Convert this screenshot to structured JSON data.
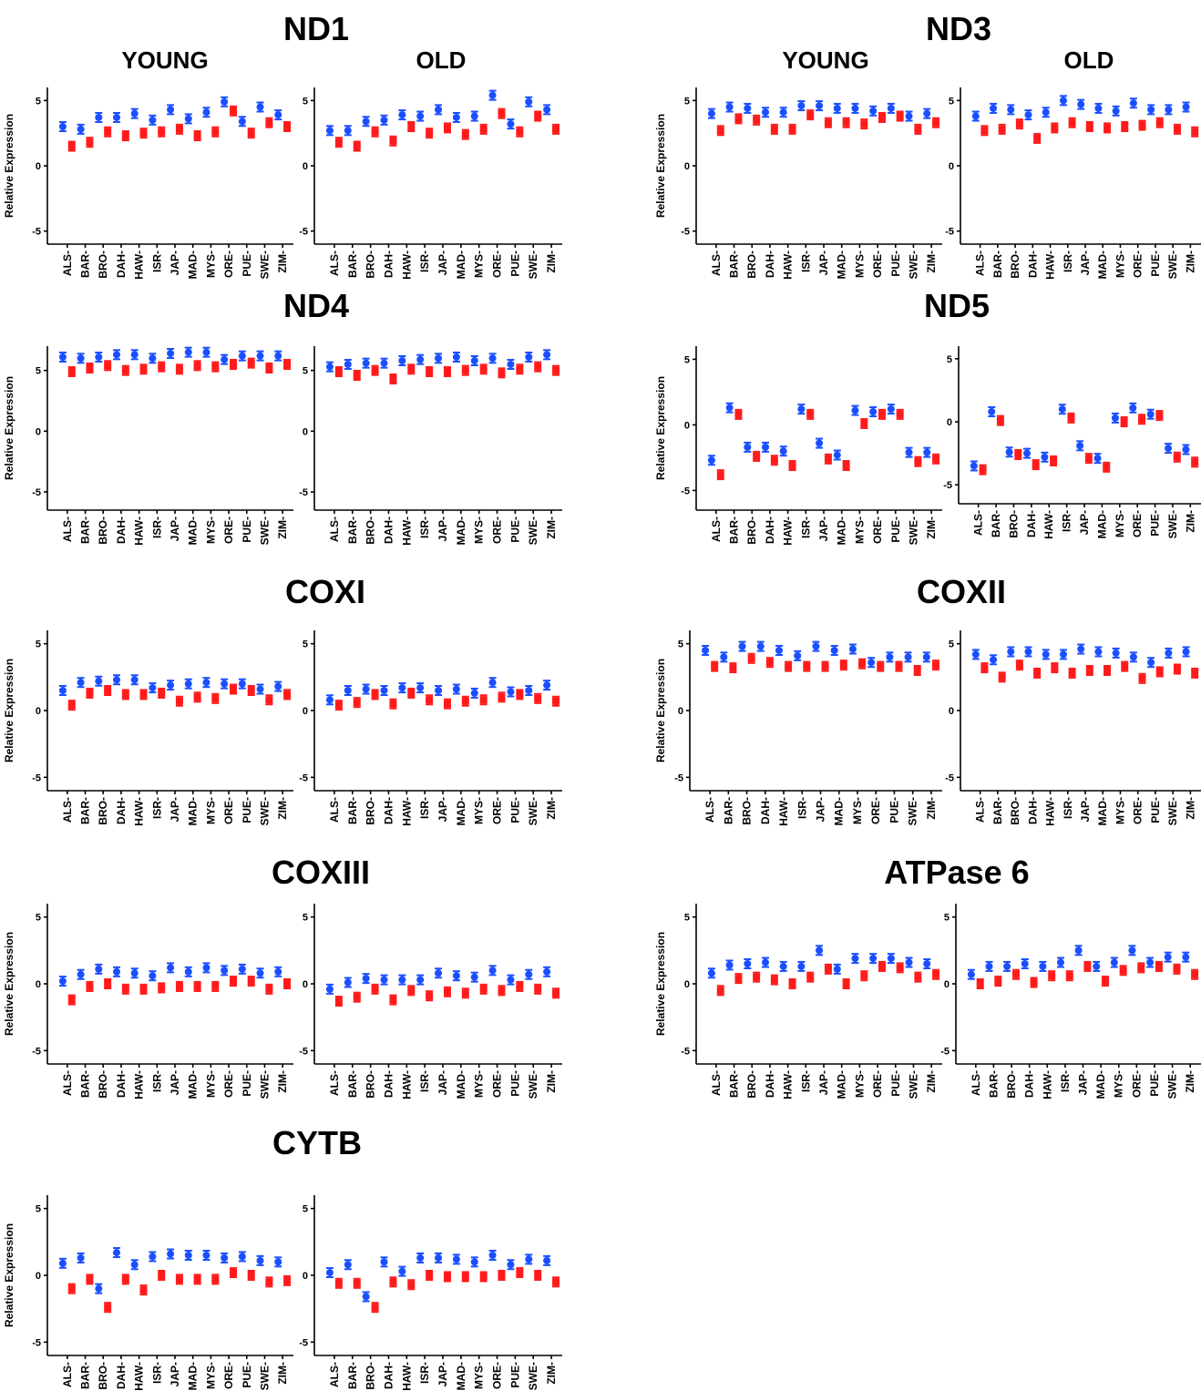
{
  "headers": {
    "young": "YOUNG",
    "old": "OLD"
  },
  "ylabel": "Relative Expression",
  "colors": {
    "young": "#1a4fff",
    "old": "#ff1a1a"
  },
  "chart_data": [
    {
      "type": "scatter",
      "gene": "ND1",
      "ylim": [
        -6,
        6
      ],
      "yticks": [
        -5,
        0,
        5
      ],
      "categories": [
        "ALS",
        "BAR",
        "BRO",
        "DAH",
        "HAW",
        "ISR",
        "JAP",
        "MAD",
        "MYS",
        "ORE",
        "PUE",
        "SWE",
        "ZIM"
      ],
      "young": {
        "blue": [
          3.0,
          2.8,
          3.7,
          3.7,
          4.0,
          3.5,
          4.3,
          3.6,
          4.1,
          4.9,
          3.4,
          4.5,
          3.9
        ],
        "red": [
          1.5,
          1.8,
          2.6,
          2.3,
          2.5,
          2.6,
          2.8,
          2.3,
          2.6,
          4.2,
          2.5,
          3.3,
          3.0
        ]
      },
      "old": {
        "blue": [
          2.7,
          2.7,
          3.4,
          3.5,
          3.9,
          3.8,
          4.3,
          3.7,
          3.8,
          5.4,
          3.2,
          4.9,
          4.3
        ],
        "red": [
          1.8,
          1.5,
          2.6,
          1.9,
          3.0,
          2.5,
          2.9,
          2.4,
          2.8,
          4.0,
          2.6,
          3.8,
          2.8
        ]
      }
    },
    {
      "type": "scatter",
      "gene": "ND3",
      "ylim": [
        -6,
        6
      ],
      "yticks": [
        -5,
        0,
        5
      ],
      "categories": [
        "ALS",
        "BAR",
        "BRO",
        "DAH",
        "HAW",
        "ISR",
        "JAP",
        "MAD",
        "MYS",
        "ORE",
        "PUE",
        "SWE",
        "ZIM"
      ],
      "young": {
        "blue": [
          4.0,
          4.5,
          4.4,
          4.1,
          4.1,
          4.6,
          4.6,
          4.4,
          4.4,
          4.2,
          4.4,
          3.8,
          4.0
        ],
        "red": [
          2.7,
          3.6,
          3.5,
          2.8,
          2.8,
          3.9,
          3.3,
          3.3,
          3.2,
          3.7,
          3.8,
          2.8,
          3.3
        ]
      },
      "old": {
        "blue": [
          3.8,
          4.4,
          4.3,
          3.9,
          4.1,
          5.0,
          4.7,
          4.4,
          4.2,
          4.8,
          4.3,
          4.3,
          4.5
        ],
        "red": [
          2.7,
          2.8,
          3.2,
          2.1,
          2.9,
          3.3,
          3.0,
          2.9,
          3.0,
          3.1,
          3.3,
          2.8,
          2.6
        ]
      }
    },
    {
      "type": "scatter",
      "gene": "ND4",
      "ylim": [
        -6.5,
        7
      ],
      "yticks": [
        -5,
        0,
        5
      ],
      "categories": [
        "ALS",
        "BAR",
        "BRO",
        "DAH",
        "HAW",
        "ISR",
        "JAP",
        "MAD",
        "MYS",
        "ORE",
        "PUE",
        "SWE",
        "ZIM"
      ],
      "young": {
        "blue": [
          6.1,
          6.0,
          6.1,
          6.3,
          6.3,
          6.0,
          6.4,
          6.5,
          6.5,
          5.9,
          6.2,
          6.2,
          6.2
        ],
        "red": [
          4.9,
          5.2,
          5.4,
          5.0,
          5.1,
          5.3,
          5.1,
          5.4,
          5.3,
          5.5,
          5.6,
          5.2,
          5.5
        ]
      },
      "old": {
        "blue": [
          5.3,
          5.5,
          5.6,
          5.6,
          5.8,
          5.9,
          6.0,
          6.1,
          5.8,
          6.0,
          5.5,
          6.1,
          6.3
        ],
        "red": [
          4.9,
          4.6,
          5.0,
          4.3,
          5.1,
          4.9,
          4.9,
          5.0,
          5.1,
          4.8,
          5.1,
          5.3,
          5.0
        ]
      }
    },
    {
      "type": "scatter",
      "gene": "ND5",
      "ylim": [
        -6.5,
        6
      ],
      "yticks": [
        -5,
        0,
        5
      ],
      "categories": [
        "ALS",
        "BAR",
        "BRO",
        "DAH",
        "HAW",
        "ISR",
        "JAP",
        "MAD",
        "MYS",
        "ORE",
        "PUE",
        "SWE",
        "ZIM"
      ],
      "young": {
        "blue": [
          -2.7,
          1.3,
          -1.7,
          -1.7,
          -2.0,
          1.2,
          -1.4,
          -2.3,
          1.1,
          1.0,
          1.2,
          -2.1,
          -2.1
        ],
        "red": [
          -3.8,
          0.8,
          -2.4,
          -2.7,
          -3.1,
          0.8,
          -2.6,
          -3.1,
          0.1,
          0.8,
          0.8,
          -2.8,
          -2.6
        ]
      },
      "old": {
        "blue": [
          -3.5,
          0.8,
          -2.4,
          -2.5,
          -2.8,
          1.0,
          -1.9,
          -2.9,
          0.3,
          1.1,
          0.6,
          -2.1,
          -2.2
        ],
        "red": [
          -3.8,
          0.1,
          -2.6,
          -3.4,
          -3.1,
          0.3,
          -2.9,
          -3.6,
          0.0,
          0.2,
          0.5,
          -2.8,
          -3.2
        ]
      }
    },
    {
      "type": "scatter",
      "gene": "COXI",
      "ylim": [
        -6,
        6
      ],
      "yticks": [
        -5,
        0,
        5
      ],
      "categories": [
        "ALS",
        "BAR",
        "BRO",
        "DAH",
        "HAW",
        "ISR",
        "JAP",
        "MAD",
        "MYS",
        "ORE",
        "PUE",
        "SWE",
        "ZIM"
      ],
      "young": {
        "blue": [
          1.5,
          2.1,
          2.2,
          2.3,
          2.3,
          1.7,
          1.9,
          2.0,
          2.1,
          2.0,
          2.0,
          1.6,
          1.8
        ],
        "red": [
          0.4,
          1.3,
          1.5,
          1.2,
          1.2,
          1.3,
          0.7,
          1.0,
          0.9,
          1.6,
          1.5,
          0.8,
          1.2
        ]
      },
      "old": {
        "blue": [
          0.8,
          1.5,
          1.6,
          1.5,
          1.7,
          1.7,
          1.5,
          1.6,
          1.3,
          2.1,
          1.4,
          1.5,
          1.9
        ],
        "red": [
          0.4,
          0.6,
          1.2,
          0.5,
          1.3,
          0.8,
          0.5,
          0.7,
          0.8,
          1.0,
          1.2,
          0.9,
          0.7
        ]
      }
    },
    {
      "type": "scatter",
      "gene": "COXII",
      "ylim": [
        -6,
        6
      ],
      "yticks": [
        -5,
        0,
        5
      ],
      "categories": [
        "ALS",
        "BAR",
        "BRO",
        "DAH",
        "HAW",
        "ISR",
        "JAP",
        "MAD",
        "MYS",
        "ORE",
        "PUE",
        "SWE",
        "ZIM"
      ],
      "young": {
        "blue": [
          4.5,
          4.0,
          4.8,
          4.8,
          4.5,
          4.1,
          4.8,
          4.5,
          4.6,
          3.6,
          4.0,
          4.0,
          4.0
        ],
        "red": [
          3.3,
          3.2,
          3.9,
          3.6,
          3.3,
          3.3,
          3.3,
          3.4,
          3.5,
          3.3,
          3.3,
          3.0,
          3.4
        ]
      },
      "old": {
        "blue": [
          4.2,
          3.8,
          4.4,
          4.4,
          4.2,
          4.2,
          4.6,
          4.4,
          4.3,
          4.0,
          3.6,
          4.3,
          4.4
        ],
        "red": [
          3.2,
          2.5,
          3.4,
          2.8,
          3.2,
          2.8,
          3.0,
          3.0,
          3.3,
          2.4,
          2.9,
          3.1,
          2.8
        ]
      }
    },
    {
      "type": "scatter",
      "gene": "COXIII",
      "ylim": [
        -6,
        6
      ],
      "yticks": [
        -5,
        0,
        5
      ],
      "categories": [
        "ALS",
        "BAR",
        "BRO",
        "DAH",
        "HAW",
        "ISR",
        "JAP",
        "MAD",
        "MYS",
        "ORE",
        "PUE",
        "SWE",
        "ZIM"
      ],
      "young": {
        "blue": [
          0.2,
          0.7,
          1.1,
          0.9,
          0.8,
          0.6,
          1.2,
          0.9,
          1.2,
          1.0,
          1.1,
          0.8,
          0.9
        ],
        "red": [
          -1.2,
          -0.2,
          0.0,
          -0.4,
          -0.4,
          -0.3,
          -0.2,
          -0.2,
          -0.2,
          0.2,
          0.2,
          -0.4,
          0.0
        ]
      },
      "old": {
        "blue": [
          -0.4,
          0.1,
          0.4,
          0.3,
          0.3,
          0.3,
          0.8,
          0.6,
          0.5,
          1.0,
          0.3,
          0.7,
          0.9
        ],
        "red": [
          -1.3,
          -1.0,
          -0.4,
          -1.2,
          -0.5,
          -0.9,
          -0.6,
          -0.7,
          -0.4,
          -0.5,
          -0.2,
          -0.4,
          -0.7
        ]
      }
    },
    {
      "type": "scatter",
      "gene": "ATPase 6",
      "ylim": [
        -6,
        6
      ],
      "yticks": [
        -5,
        0,
        5
      ],
      "categories": [
        "ALS",
        "BAR",
        "BRO",
        "DAH",
        "HAW",
        "ISR",
        "JAP",
        "MAD",
        "MYS",
        "ORE",
        "PUE",
        "SWE",
        "ZIM"
      ],
      "young": {
        "blue": [
          0.8,
          1.4,
          1.5,
          1.6,
          1.3,
          1.3,
          2.5,
          1.1,
          1.9,
          1.9,
          1.9,
          1.6,
          1.5
        ],
        "red": [
          -0.5,
          0.4,
          0.5,
          0.3,
          0.0,
          0.5,
          1.1,
          0.0,
          0.6,
          1.3,
          1.2,
          0.5,
          0.7
        ]
      },
      "old": {
        "blue": [
          0.7,
          1.3,
          1.3,
          1.5,
          1.3,
          1.6,
          2.5,
          1.3,
          1.6,
          2.5,
          1.6,
          2.0,
          2.0
        ],
        "red": [
          0.0,
          0.2,
          0.7,
          0.1,
          0.6,
          0.6,
          1.3,
          0.2,
          1.0,
          1.2,
          1.3,
          1.1,
          0.7
        ]
      }
    },
    {
      "type": "scatter",
      "gene": "CYTB",
      "ylim": [
        -6,
        6
      ],
      "yticks": [
        -5,
        0,
        5
      ],
      "categories": [
        "ALS",
        "BAR",
        "BRO",
        "DAH",
        "HAW",
        "ISR",
        "JAP",
        "MAD",
        "MYS",
        "ORE",
        "PUE",
        "SWE",
        "ZIM"
      ],
      "young": {
        "blue": [
          0.9,
          1.3,
          -1.0,
          1.7,
          0.8,
          1.4,
          1.6,
          1.5,
          1.5,
          1.3,
          1.4,
          1.1,
          1.0
        ],
        "red": [
          -1.0,
          -0.3,
          -2.4,
          -0.3,
          -1.1,
          0.0,
          -0.3,
          -0.3,
          -0.3,
          0.2,
          0.0,
          -0.5,
          -0.4
        ]
      },
      "old": {
        "blue": [
          0.2,
          0.8,
          -1.6,
          1.0,
          0.3,
          1.3,
          1.3,
          1.2,
          1.0,
          1.5,
          0.8,
          1.2,
          1.1
        ],
        "red": [
          -0.6,
          -0.6,
          -2.4,
          -0.5,
          -0.7,
          0.0,
          -0.1,
          -0.1,
          -0.1,
          0.0,
          0.2,
          0.0,
          -0.5
        ]
      }
    }
  ]
}
